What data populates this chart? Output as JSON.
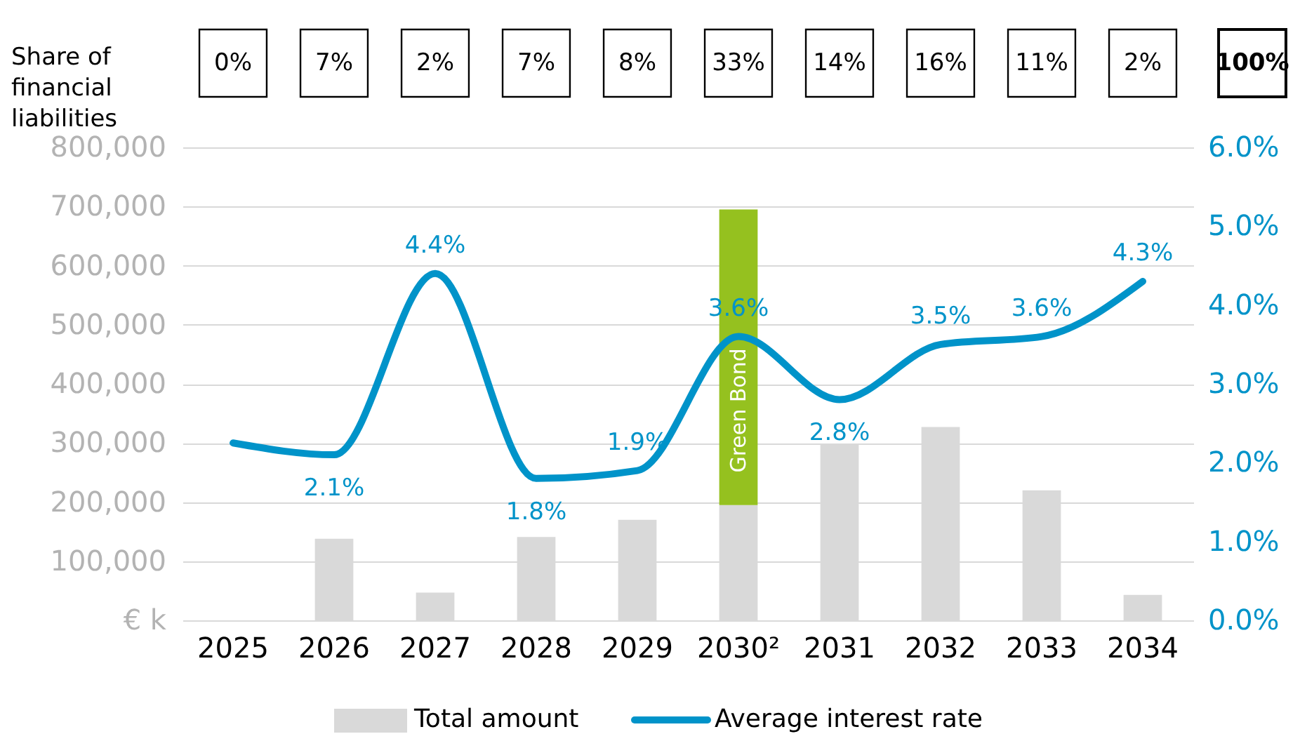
{
  "chart_data": {
    "type": "bar",
    "stacked": true,
    "categories": [
      "2025",
      "2026",
      "2027",
      "2028",
      "2029",
      "2030²",
      "2031",
      "2032",
      "2033",
      "2034"
    ],
    "series": [
      {
        "name": "Total amount",
        "color": "#d9d9d9",
        "values": [
          null,
          138000,
          47000,
          141000,
          170000,
          195000,
          299000,
          327000,
          220000,
          43000
        ]
      },
      {
        "color": "#95c11f",
        "values": [
          null,
          null,
          null,
          null,
          null,
          500000,
          null,
          null,
          null,
          null
        ]
      },
      {
        "name": "Average interest rate",
        "type": "line",
        "axis": "y2",
        "color": "#0093c9",
        "values": [
          2.25,
          2.1,
          4.4,
          1.8,
          1.9,
          3.6,
          2.8,
          3.5,
          3.6,
          4.3
        ],
        "value_labels": [
          null,
          "2.1%",
          "4.4%",
          "1.8%",
          "1.9%",
          "3.6%",
          "2.8%",
          "3.5%",
          "3.6%",
          "4.3%"
        ]
      }
    ],
    "ylim": [
      0,
      800000
    ],
    "yticks": [
      {
        "value": 0,
        "label": "€ k"
      },
      {
        "value": 100000,
        "label": "100,000"
      },
      {
        "value": 200000,
        "label": "200,000"
      },
      {
        "value": 300000,
        "label": "300,000"
      },
      {
        "value": 400000,
        "label": "400,000"
      },
      {
        "value": 500000,
        "label": "500,000"
      },
      {
        "value": 600000,
        "label": "600,000"
      },
      {
        "value": 700000,
        "label": "700,000"
      },
      {
        "value": 800000,
        "label": "800,000"
      }
    ],
    "y2lim": [
      0,
      6
    ],
    "y2ticks": [
      {
        "value": 0,
        "label": "0.0%"
      },
      {
        "value": 1,
        "label": "1.0%"
      },
      {
        "value": 2,
        "label": "2.0%"
      },
      {
        "value": 3,
        "label": "3.0%"
      },
      {
        "value": 4,
        "label": "4.0%"
      },
      {
        "value": 5,
        "label": "5.0%"
      },
      {
        "value": 6,
        "label": "6.0%"
      }
    ],
    "grid": "y",
    "legend": "bottom",
    "marker": "none",
    "line_style": "solid",
    "annotations": [
      "Green Bond",
      "Share of\nfinancial\nliabilities",
      "0%",
      "7%",
      "2%",
      "7%",
      "8%",
      "33%",
      "14%",
      "16%",
      "11%",
      "2%",
      "100%"
    ]
  }
}
